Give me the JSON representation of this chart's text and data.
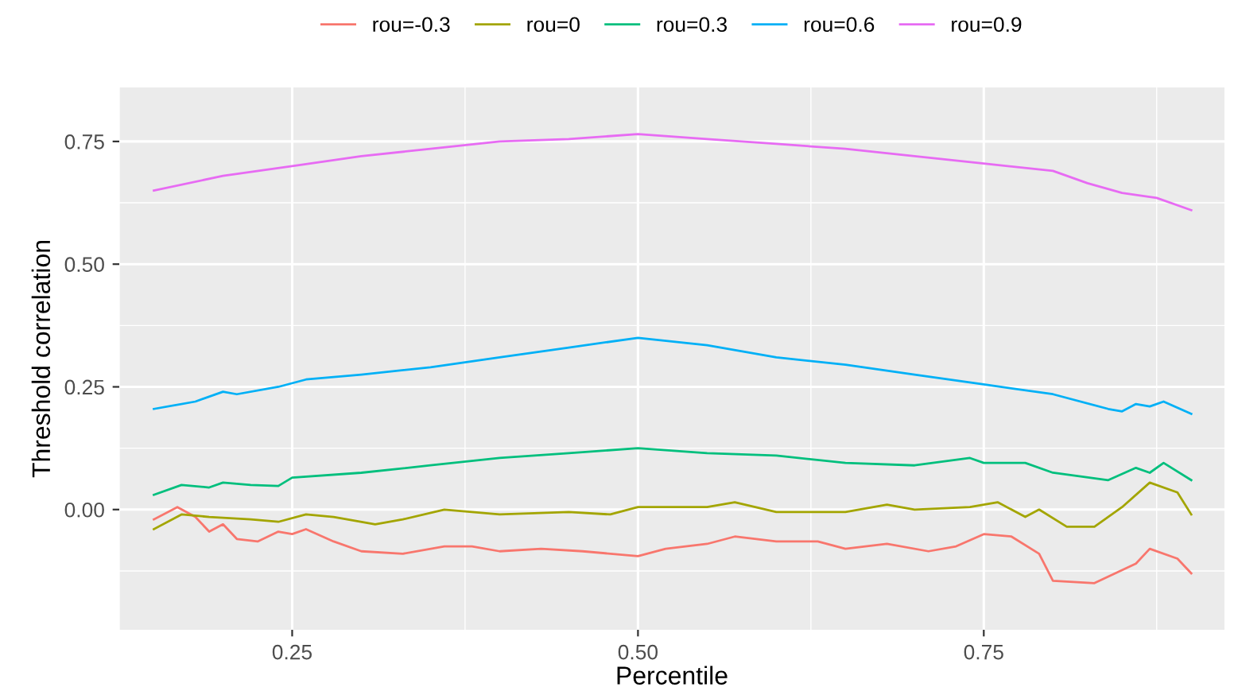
{
  "chart_data": {
    "type": "line",
    "xlabel": "Percentile",
    "ylabel": "Threshold correlation",
    "xlim": [
      0.125,
      0.924
    ],
    "ylim": [
      -0.245,
      0.86
    ],
    "xticks": [
      {
        "value": 0.25,
        "label": "0.25"
      },
      {
        "value": 0.5,
        "label": "0.50"
      },
      {
        "value": 0.75,
        "label": "0.75"
      }
    ],
    "yticks": [
      {
        "value": 0,
        "label": "0.00"
      },
      {
        "value": 0.25,
        "label": "0.25"
      },
      {
        "value": 0.5,
        "label": "0.50"
      },
      {
        "value": 0.75,
        "label": "0.75"
      }
    ],
    "grid": true,
    "legend": "top",
    "series": [
      {
        "name": "rou=-0.3",
        "color": "#f8766d",
        "x": [
          0.15,
          0.167,
          0.18,
          0.19,
          0.2,
          0.21,
          0.225,
          0.24,
          0.25,
          0.26,
          0.28,
          0.3,
          0.33,
          0.36,
          0.38,
          0.4,
          0.43,
          0.46,
          0.5,
          0.52,
          0.55,
          0.57,
          0.6,
          0.63,
          0.65,
          0.68,
          0.71,
          0.73,
          0.75,
          0.77,
          0.79,
          0.8,
          0.83,
          0.86,
          0.87,
          0.89,
          0.9
        ],
        "values": [
          -0.02,
          0.005,
          -0.015,
          -0.045,
          -0.03,
          -0.06,
          -0.065,
          -0.045,
          -0.05,
          -0.04,
          -0.065,
          -0.085,
          -0.09,
          -0.075,
          -0.075,
          -0.085,
          -0.08,
          -0.085,
          -0.095,
          -0.08,
          -0.07,
          -0.055,
          -0.065,
          -0.065,
          -0.08,
          -0.07,
          -0.085,
          -0.075,
          -0.05,
          -0.055,
          -0.09,
          -0.145,
          -0.15,
          -0.11,
          -0.08,
          -0.1,
          -0.13
        ]
      },
      {
        "name": "rou=0",
        "color": "#a3a500",
        "x": [
          0.15,
          0.17,
          0.19,
          0.22,
          0.24,
          0.26,
          0.28,
          0.31,
          0.33,
          0.36,
          0.4,
          0.45,
          0.48,
          0.5,
          0.55,
          0.57,
          0.6,
          0.65,
          0.68,
          0.7,
          0.74,
          0.76,
          0.78,
          0.79,
          0.81,
          0.83,
          0.85,
          0.87,
          0.89,
          0.9
        ],
        "values": [
          -0.04,
          -0.01,
          -0.015,
          -0.02,
          -0.025,
          -0.01,
          -0.015,
          -0.03,
          -0.02,
          0,
          -0.01,
          -0.005,
          -0.01,
          0.005,
          0.005,
          0.015,
          -0.005,
          -0.005,
          0.01,
          0,
          0.005,
          0.015,
          -0.015,
          0,
          -0.035,
          -0.035,
          0.005,
          0.055,
          0.035,
          -0.01
        ]
      },
      {
        "name": "rou=0.3",
        "color": "#00bf7d",
        "x": [
          0.15,
          0.17,
          0.19,
          0.2,
          0.22,
          0.24,
          0.25,
          0.3,
          0.35,
          0.4,
          0.45,
          0.5,
          0.55,
          0.6,
          0.65,
          0.7,
          0.74,
          0.75,
          0.78,
          0.8,
          0.84,
          0.86,
          0.87,
          0.88,
          0.9
        ],
        "values": [
          0.03,
          0.05,
          0.045,
          0.055,
          0.05,
          0.048,
          0.065,
          0.075,
          0.09,
          0.105,
          0.115,
          0.125,
          0.115,
          0.11,
          0.095,
          0.09,
          0.105,
          0.095,
          0.095,
          0.075,
          0.06,
          0.085,
          0.075,
          0.095,
          0.06
        ]
      },
      {
        "name": "rou=0.6",
        "color": "#00b0f6",
        "x": [
          0.15,
          0.18,
          0.2,
          0.21,
          0.24,
          0.26,
          0.3,
          0.35,
          0.4,
          0.45,
          0.5,
          0.55,
          0.6,
          0.65,
          0.7,
          0.75,
          0.8,
          0.84,
          0.85,
          0.86,
          0.87,
          0.88,
          0.9
        ],
        "values": [
          0.205,
          0.22,
          0.24,
          0.235,
          0.25,
          0.265,
          0.275,
          0.29,
          0.31,
          0.33,
          0.35,
          0.335,
          0.31,
          0.295,
          0.275,
          0.255,
          0.235,
          0.205,
          0.2,
          0.215,
          0.21,
          0.22,
          0.195
        ]
      },
      {
        "name": "rou=0.9",
        "color": "#e76bf3",
        "x": [
          0.15,
          0.2,
          0.25,
          0.3,
          0.35,
          0.4,
          0.45,
          0.5,
          0.55,
          0.6,
          0.65,
          0.7,
          0.75,
          0.8,
          0.825,
          0.85,
          0.875,
          0.9
        ],
        "values": [
          0.65,
          0.68,
          0.7,
          0.72,
          0.735,
          0.75,
          0.755,
          0.765,
          0.755,
          0.745,
          0.735,
          0.72,
          0.705,
          0.69,
          0.665,
          0.645,
          0.635,
          0.61
        ]
      }
    ]
  }
}
